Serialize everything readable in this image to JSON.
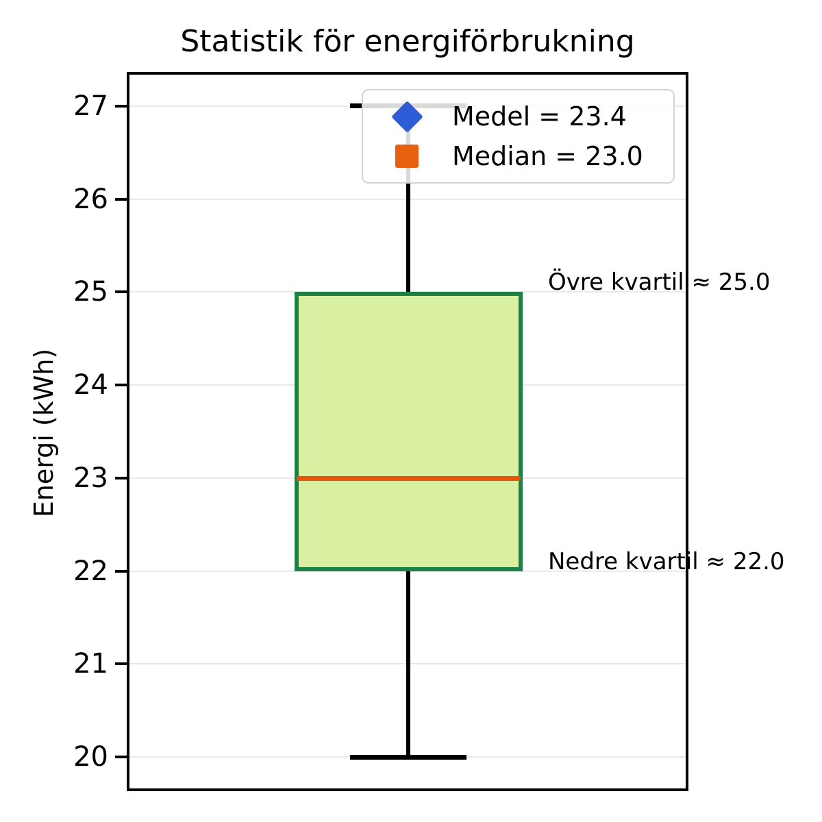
{
  "chart_data": {
    "type": "boxplot",
    "title": "Statistik för energiförbrukning",
    "ylabel": "Energi (kWh)",
    "yticks": [
      20,
      21,
      22,
      23,
      24,
      25,
      26,
      27
    ],
    "ylim": [
      19.63,
      27.35
    ],
    "grid": true,
    "box": {
      "whisker_low": 20.0,
      "q1": 22.0,
      "median": 23.0,
      "q3": 25.0,
      "whisker_high": 27.0,
      "mean": 23.4
    },
    "legend": {
      "position": "upper center",
      "items": [
        {
          "marker": "diamond-icon",
          "label": "Medel = 23.4",
          "color": "#2d5cd6"
        },
        {
          "marker": "square-icon",
          "label": "Median = 23.0",
          "color": "#e8610e"
        }
      ]
    },
    "annotations": [
      {
        "text": "Övre kvartil ≈ 25.0",
        "value": 25.0
      },
      {
        "text": "Nedre kvartil ≈ 22.0",
        "value": 22.0
      }
    ],
    "colors": {
      "box_fill": "#d9f0a3",
      "box_edge": "#1e8044",
      "median_line": "#e8530e",
      "whisker": "#000000",
      "grid": "#e9e9e9",
      "spine": "#000000"
    }
  }
}
